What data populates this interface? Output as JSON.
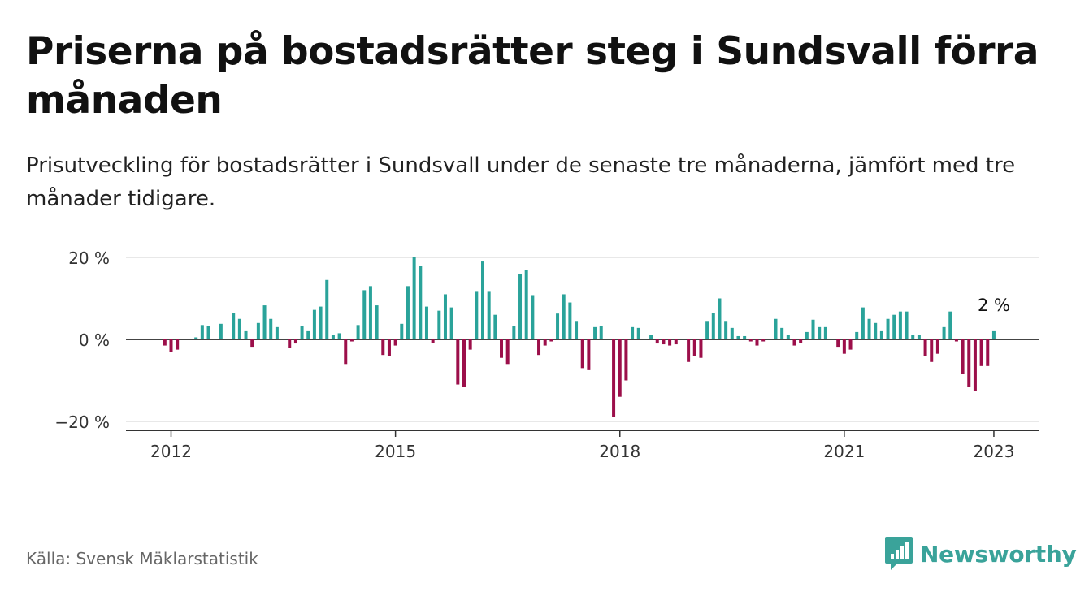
{
  "header": {
    "title": "Priserna på bostadsrätter steg i Sundsvall förra månaden",
    "subtitle": "Prisutveckling för bostadsrätter i Sundsvall under de senaste tre månaderna, jämfört med tre månader tidigare."
  },
  "footer": {
    "source": "Källa: Svensk Mäklarstatistik",
    "brand": "Newsworthy"
  },
  "colors": {
    "positive": "#2aa39a",
    "negative": "#9c0f4a",
    "grid": "#d9d9d9",
    "axis": "#333333"
  },
  "chart_data": {
    "type": "bar",
    "y_ticks": [
      {
        "value": 20,
        "label": "20 %"
      },
      {
        "value": 0,
        "label": "0 %"
      },
      {
        "value": -20,
        "label": "−20 %"
      }
    ],
    "x_ticks": [
      "2012",
      "2015",
      "2018",
      "2021",
      "2023"
    ],
    "ylim": [
      -22,
      21
    ],
    "annotation": {
      "text": "2 %",
      "date": "2022-12"
    },
    "grid": true,
    "series": [
      {
        "data": [
          {
            "date": "2011-12",
            "value": -1.5
          },
          {
            "date": "2012-01",
            "value": -3
          },
          {
            "date": "2012-02",
            "value": -2.5
          },
          {
            "date": "2012-03",
            "value": 0
          },
          {
            "date": "2012-04",
            "value": 0
          },
          {
            "date": "2012-05",
            "value": 0.5
          },
          {
            "date": "2012-06",
            "value": 3.5
          },
          {
            "date": "2012-07",
            "value": 3.2
          },
          {
            "date": "2012-08",
            "value": 0
          },
          {
            "date": "2012-09",
            "value": 3.8
          },
          {
            "date": "2012-10",
            "value": 0
          },
          {
            "date": "2012-11",
            "value": 6.5
          },
          {
            "date": "2012-12",
            "value": 5
          },
          {
            "date": "2013-01",
            "value": 2
          },
          {
            "date": "2013-02",
            "value": -1.8
          },
          {
            "date": "2013-03",
            "value": 4
          },
          {
            "date": "2013-04",
            "value": 8.3
          },
          {
            "date": "2013-05",
            "value": 5
          },
          {
            "date": "2013-06",
            "value": 3
          },
          {
            "date": "2013-07",
            "value": 0
          },
          {
            "date": "2013-08",
            "value": -2
          },
          {
            "date": "2013-09",
            "value": -1
          },
          {
            "date": "2013-10",
            "value": 3.2
          },
          {
            "date": "2013-11",
            "value": 2
          },
          {
            "date": "2013-12",
            "value": 7.2
          },
          {
            "date": "2014-01",
            "value": 8
          },
          {
            "date": "2014-02",
            "value": 14.5
          },
          {
            "date": "2014-03",
            "value": 1
          },
          {
            "date": "2014-04",
            "value": 1.5
          },
          {
            "date": "2014-05",
            "value": -6
          },
          {
            "date": "2014-06",
            "value": -0.5
          },
          {
            "date": "2014-07",
            "value": 3.5
          },
          {
            "date": "2014-08",
            "value": 12
          },
          {
            "date": "2014-09",
            "value": 13
          },
          {
            "date": "2014-10",
            "value": 8.3
          },
          {
            "date": "2014-11",
            "value": -3.8
          },
          {
            "date": "2014-12",
            "value": -4
          },
          {
            "date": "2015-01",
            "value": -1.5
          },
          {
            "date": "2015-02",
            "value": 3.8
          },
          {
            "date": "2015-03",
            "value": 13
          },
          {
            "date": "2015-04",
            "value": 20
          },
          {
            "date": "2015-05",
            "value": 18
          },
          {
            "date": "2015-06",
            "value": 8
          },
          {
            "date": "2015-07",
            "value": -0.8
          },
          {
            "date": "2015-08",
            "value": 7
          },
          {
            "date": "2015-09",
            "value": 11
          },
          {
            "date": "2015-10",
            "value": 7.8
          },
          {
            "date": "2015-11",
            "value": -11
          },
          {
            "date": "2015-12",
            "value": -11.5
          },
          {
            "date": "2016-01",
            "value": -2.5
          },
          {
            "date": "2016-02",
            "value": 11.8
          },
          {
            "date": "2016-03",
            "value": 19
          },
          {
            "date": "2016-04",
            "value": 11.8
          },
          {
            "date": "2016-05",
            "value": 6
          },
          {
            "date": "2016-06",
            "value": -4.5
          },
          {
            "date": "2016-07",
            "value": -6
          },
          {
            "date": "2016-08",
            "value": 3.2
          },
          {
            "date": "2016-09",
            "value": 16
          },
          {
            "date": "2016-10",
            "value": 17
          },
          {
            "date": "2016-11",
            "value": 10.8
          },
          {
            "date": "2016-12",
            "value": -3.8
          },
          {
            "date": "2017-01",
            "value": -1.5
          },
          {
            "date": "2017-02",
            "value": -0.5
          },
          {
            "date": "2017-03",
            "value": 6.3
          },
          {
            "date": "2017-04",
            "value": 11
          },
          {
            "date": "2017-05",
            "value": 9
          },
          {
            "date": "2017-06",
            "value": 4.5
          },
          {
            "date": "2017-07",
            "value": -7
          },
          {
            "date": "2017-08",
            "value": -7.5
          },
          {
            "date": "2017-09",
            "value": 3
          },
          {
            "date": "2017-10",
            "value": 3.2
          },
          {
            "date": "2017-11",
            "value": 0
          },
          {
            "date": "2017-12",
            "value": -19
          },
          {
            "date": "2018-01",
            "value": -14
          },
          {
            "date": "2018-02",
            "value": -10
          },
          {
            "date": "2018-03",
            "value": 3
          },
          {
            "date": "2018-04",
            "value": 2.8
          },
          {
            "date": "2018-05",
            "value": 0
          },
          {
            "date": "2018-06",
            "value": 1
          },
          {
            "date": "2018-07",
            "value": -1
          },
          {
            "date": "2018-08",
            "value": -1.2
          },
          {
            "date": "2018-09",
            "value": -1.5
          },
          {
            "date": "2018-10",
            "value": -1.2
          },
          {
            "date": "2018-11",
            "value": 0
          },
          {
            "date": "2018-12",
            "value": -5.5
          },
          {
            "date": "2019-01",
            "value": -4
          },
          {
            "date": "2019-02",
            "value": -4.5
          },
          {
            "date": "2019-03",
            "value": 4.5
          },
          {
            "date": "2019-04",
            "value": 6.5
          },
          {
            "date": "2019-05",
            "value": 10
          },
          {
            "date": "2019-06",
            "value": 4.5
          },
          {
            "date": "2019-07",
            "value": 2.8
          },
          {
            "date": "2019-08",
            "value": 0.8
          },
          {
            "date": "2019-09",
            "value": 0.8
          },
          {
            "date": "2019-10",
            "value": -0.5
          },
          {
            "date": "2019-11",
            "value": -1.5
          },
          {
            "date": "2019-12",
            "value": -0.5
          },
          {
            "date": "2020-01",
            "value": 0
          },
          {
            "date": "2020-02",
            "value": 5
          },
          {
            "date": "2020-03",
            "value": 2.8
          },
          {
            "date": "2020-04",
            "value": 1
          },
          {
            "date": "2020-05",
            "value": -1.5
          },
          {
            "date": "2020-06",
            "value": -0.8
          },
          {
            "date": "2020-07",
            "value": 1.8
          },
          {
            "date": "2020-08",
            "value": 4.8
          },
          {
            "date": "2020-09",
            "value": 3
          },
          {
            "date": "2020-10",
            "value": 3
          },
          {
            "date": "2020-11",
            "value": 0
          },
          {
            "date": "2020-12",
            "value": -1.8
          },
          {
            "date": "2021-01",
            "value": -3.5
          },
          {
            "date": "2021-02",
            "value": -2.5
          },
          {
            "date": "2021-03",
            "value": 1.8
          },
          {
            "date": "2021-04",
            "value": 7.8
          },
          {
            "date": "2021-05",
            "value": 5
          },
          {
            "date": "2021-06",
            "value": 4
          },
          {
            "date": "2021-07",
            "value": 2
          },
          {
            "date": "2021-08",
            "value": 5
          },
          {
            "date": "2021-09",
            "value": 6
          },
          {
            "date": "2021-10",
            "value": 6.8
          },
          {
            "date": "2021-11",
            "value": 6.8
          },
          {
            "date": "2021-12",
            "value": 1
          },
          {
            "date": "2022-01",
            "value": 1
          },
          {
            "date": "2022-02",
            "value": -4
          },
          {
            "date": "2022-03",
            "value": -5.5
          },
          {
            "date": "2022-04",
            "value": -3.5
          },
          {
            "date": "2022-05",
            "value": 3
          },
          {
            "date": "2022-06",
            "value": 6.8
          },
          {
            "date": "2022-07",
            "value": -0.5
          },
          {
            "date": "2022-08",
            "value": -8.5
          },
          {
            "date": "2022-09",
            "value": -11.5
          },
          {
            "date": "2022-10",
            "value": -12.5
          },
          {
            "date": "2022-11",
            "value": -6.5
          },
          {
            "date": "2022-12",
            "value": -6.5
          },
          {
            "date": "2023-01",
            "value": 2
          }
        ]
      }
    ]
  }
}
